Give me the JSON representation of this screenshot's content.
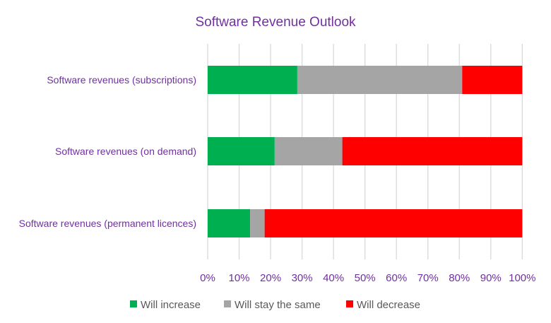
{
  "chart_data": {
    "type": "bar",
    "orientation": "horizontal",
    "stacked": "percent",
    "title": "Software Revenue Outlook",
    "categories": [
      "Software revenues (subscriptions)",
      "Software revenues (on demand)",
      "Software revenues (permanent licences)"
    ],
    "series": [
      {
        "name": "Will increase",
        "color": "#00b050",
        "values": [
          28.5,
          21.3,
          13.5
        ]
      },
      {
        "name": "Will stay the same",
        "color": "#a5a5a5",
        "values": [
          52.4,
          21.5,
          4.6
        ]
      },
      {
        "name": "Will decrease",
        "color": "#ff0000",
        "values": [
          19.1,
          57.2,
          81.9
        ]
      }
    ],
    "xlim": [
      0,
      100
    ],
    "xticks": [
      "0%",
      "10%",
      "20%",
      "30%",
      "40%",
      "50%",
      "60%",
      "70%",
      "80%",
      "90%",
      "100%"
    ],
    "xlabel": "",
    "ylabel": "",
    "grid": true,
    "legend": "bottom"
  }
}
